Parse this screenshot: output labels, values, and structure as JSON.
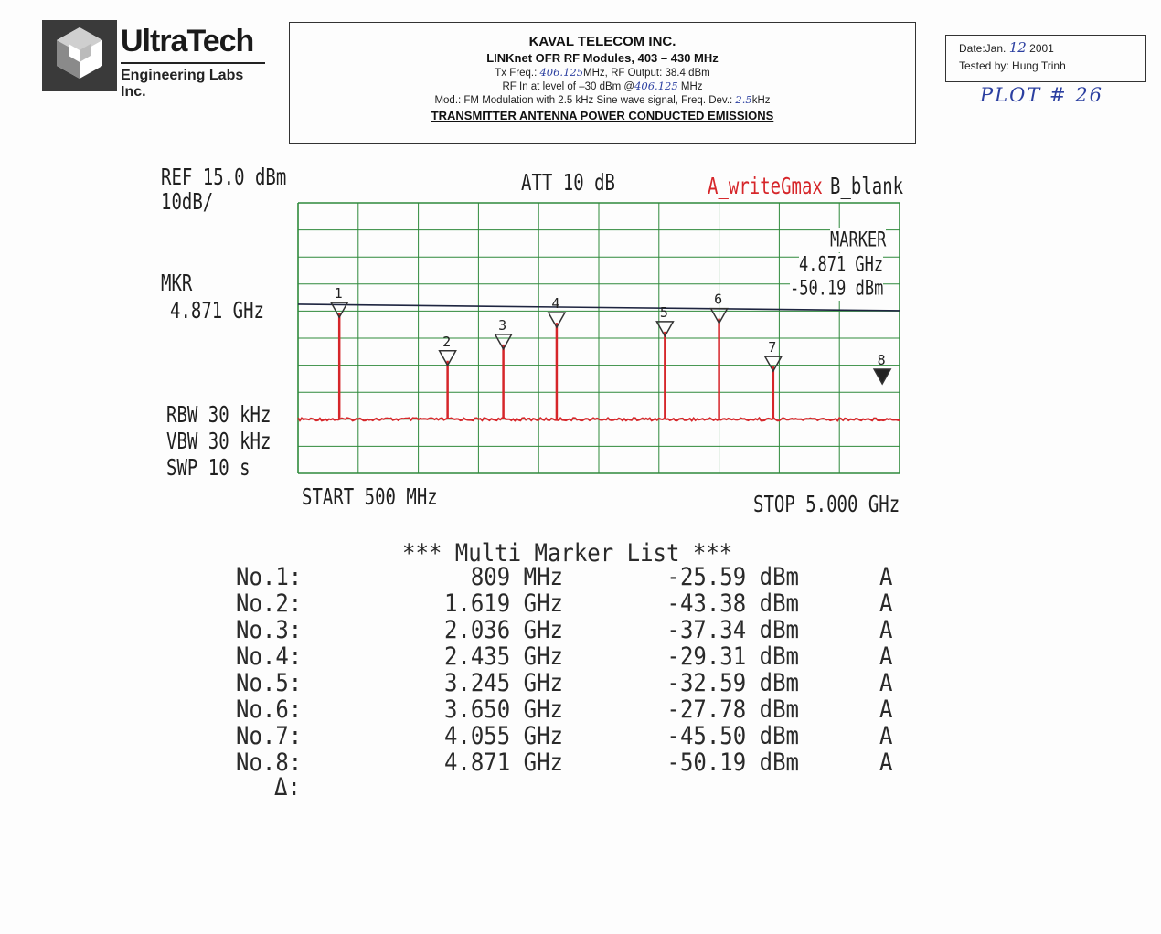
{
  "logo": {
    "title": "UltraTech",
    "subtitle": "Engineering Labs Inc."
  },
  "header": {
    "company": "KAVAL TELECOM INC.",
    "product": "LINKnet OFR RF Modules, 403 – 430 MHz",
    "tx_prefix": "Tx Freq.:",
    "tx_freq": "406.125",
    "tx_suffix": "MHz, RF Output: 38.4 dBm",
    "rf_prefix": "RF In at level of –30 dBm @",
    "rf_freq": "406.125",
    "rf_suffix": "MHz",
    "mod_prefix": "Mod.: FM Modulation with 2.5 kHz Sine wave signal, Freq. Dev.:",
    "mod_dev": "2.5",
    "mod_suffix": "kHz",
    "test_title": "TRANSMITTER ANTENNA POWER CONDUCTED EMISSIONS"
  },
  "datebox": {
    "date_prefix": "Date:Jan.",
    "date_day": "12",
    "date_year": "2001",
    "tested_label": "Tested by:",
    "tested_by": "Hung Trinh"
  },
  "plot_number": "PLOT # 26",
  "analyzer": {
    "ref": "REF 15.0 dBm",
    "scale": "10dB/",
    "att": "ATT 10 dB",
    "trace_a": "A_writeGmax",
    "trace_b": "B_blank",
    "mkr_label": "MKR",
    "mkr_value": "4.871 GHz",
    "marker_box_title": "MARKER",
    "marker_box_freq": "4.871 GHz",
    "marker_box_level": "-50.19 dBm",
    "rbw": "RBW 30 kHz",
    "vbw": "VBW 30 kHz",
    "swp": "SWP 10 s",
    "start": "START 500 MHz",
    "stop": "STOP 5.000 GHz"
  },
  "chart_data": {
    "type": "line",
    "x_unit": "MHz",
    "y_unit": "dBm",
    "xlim": [
      500,
      5000
    ],
    "ylim": [
      -85,
      15
    ],
    "grid": true,
    "limit_line_dbm": -23.5,
    "noise_floor_dbm": -65,
    "markers": [
      {
        "no": "1",
        "freq_mhz": 809,
        "level_dbm": -25.59
      },
      {
        "no": "2",
        "freq_mhz": 1619,
        "level_dbm": -43.38
      },
      {
        "no": "3",
        "freq_mhz": 2036,
        "level_dbm": -37.34
      },
      {
        "no": "4",
        "freq_mhz": 2435,
        "level_dbm": -29.31
      },
      {
        "no": "5",
        "freq_mhz": 3245,
        "level_dbm": -32.59
      },
      {
        "no": "6",
        "freq_mhz": 3650,
        "level_dbm": -27.78
      },
      {
        "no": "7",
        "freq_mhz": 4055,
        "level_dbm": -45.5
      },
      {
        "no": "8",
        "freq_mhz": 4871,
        "level_dbm": -50.19
      }
    ],
    "colors": {
      "grid": "#2f8a3c",
      "trace": "#d6262a",
      "limit": "#1e2540"
    }
  },
  "marker_list": {
    "title": "*** Multi Marker List ***",
    "rows": [
      {
        "no": "No.1:",
        "freq": "809 MHz",
        "level": "-25.59 dBm",
        "trace": "A"
      },
      {
        "no": "No.2:",
        "freq": "1.619 GHz",
        "level": "-43.38 dBm",
        "trace": "A"
      },
      {
        "no": "No.3:",
        "freq": "2.036 GHz",
        "level": "-37.34 dBm",
        "trace": "A"
      },
      {
        "no": "No.4:",
        "freq": "2.435 GHz",
        "level": "-29.31 dBm",
        "trace": "A"
      },
      {
        "no": "No.5:",
        "freq": "3.245 GHz",
        "level": "-32.59 dBm",
        "trace": "A"
      },
      {
        "no": "No.6:",
        "freq": "3.650 GHz",
        "level": "-27.78 dBm",
        "trace": "A"
      },
      {
        "no": "No.7:",
        "freq": "4.055 GHz",
        "level": "-45.50 dBm",
        "trace": "A"
      },
      {
        "no": "No.8:",
        "freq": "4.871 GHz",
        "level": "-50.19 dBm",
        "trace": "A"
      }
    ],
    "delta_label": "Δ:"
  }
}
